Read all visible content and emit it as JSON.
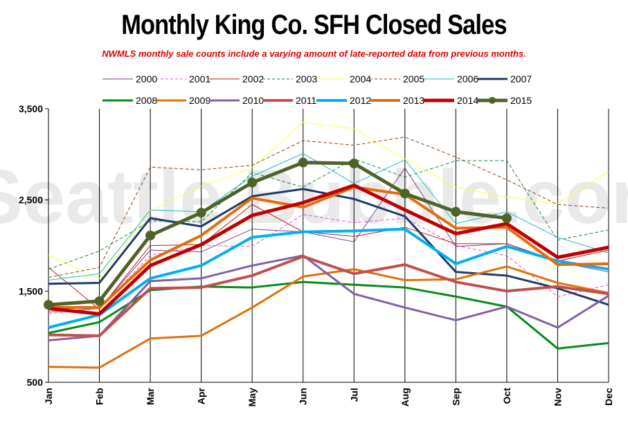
{
  "chart_data": {
    "type": "line",
    "title": "Monthly King Co. SFH Closed Sales",
    "subtitle": "NWMLS monthly sale counts include a varying amount of late-reported  data from previous months.",
    "watermark": "Seattle Bubble.com",
    "categories": [
      "Jan",
      "Feb",
      "Mar",
      "Apr",
      "May",
      "Jun",
      "Jul",
      "Aug",
      "Sep",
      "Oct",
      "Nov",
      "Dec"
    ],
    "ylim": [
      500,
      3500
    ],
    "yticks": [
      500,
      1500,
      2500,
      3500
    ],
    "ytick_labels": [
      "500",
      "1,500",
      "2,500",
      "3,500"
    ],
    "grid": "vertical",
    "legend_position": "top",
    "series": [
      {
        "name": "2000",
        "color": "#7a3c87",
        "dash": "solid",
        "width": 1,
        "values": [
          1270,
          1310,
          1950,
          1930,
          2180,
          2150,
          2040,
          2850,
          1990,
          2020,
          1820,
          1710
        ]
      },
      {
        "name": "2001",
        "color": "#ea4ce0",
        "dash": "dash",
        "width": 1,
        "values": [
          1250,
          1310,
          1890,
          2000,
          1990,
          2340,
          2250,
          2300,
          2000,
          1890,
          1440,
          1570
        ]
      },
      {
        "name": "2002",
        "color": "#c0181b",
        "dash": "solid",
        "width": 1,
        "values": [
          1760,
          1300,
          2000,
          2010,
          2450,
          2150,
          2100,
          2200,
          2020,
          2020,
          1830,
          1950
        ]
      },
      {
        "name": "2003",
        "color": "#0f8a3c",
        "dash": "dash",
        "width": 1,
        "values": [
          1740,
          1940,
          2270,
          2260,
          2800,
          2640,
          2950,
          2750,
          2930,
          2930,
          2060,
          2170
        ]
      },
      {
        "name": "2004",
        "color": "#ffff40",
        "dash": "solid",
        "width": 1,
        "values": [
          1890,
          1640,
          2380,
          2650,
          2850,
          3350,
          3280,
          2950,
          2640,
          2530,
          2460,
          2810
        ]
      },
      {
        "name": "2005",
        "color": "#8b4513",
        "dash": "dash",
        "width": 1,
        "values": [
          1650,
          1760,
          2860,
          2830,
          2880,
          3150,
          3100,
          3190,
          2970,
          2720,
          2450,
          2410
        ]
      },
      {
        "name": "2006",
        "color": "#1fb8d0",
        "dash": "solid",
        "width": 1,
        "values": [
          1620,
          1690,
          2390,
          2370,
          2760,
          3010,
          2680,
          2940,
          2240,
          2370,
          2090,
          1920
        ]
      },
      {
        "name": "2007",
        "color": "#1f3a68",
        "dash": "solid",
        "width": 3,
        "values": [
          1580,
          1590,
          2300,
          2210,
          2540,
          2620,
          2510,
          2320,
          1710,
          1670,
          1530,
          1350
        ]
      },
      {
        "name": "2008",
        "color": "#0a8a17",
        "dash": "solid",
        "width": 3,
        "values": [
          1040,
          1160,
          1510,
          1550,
          1540,
          1600,
          1570,
          1540,
          1440,
          1330,
          870,
          930
        ]
      },
      {
        "name": "2009",
        "color": "#e0700b",
        "dash": "solid",
        "width": 3,
        "values": [
          670,
          660,
          980,
          1010,
          1320,
          1660,
          1740,
          1620,
          1630,
          1770,
          1590,
          1480
        ]
      },
      {
        "name": "2010",
        "color": "#8060a8",
        "dash": "solid",
        "width": 3,
        "values": [
          960,
          1010,
          1610,
          1640,
          1780,
          1890,
          1470,
          1320,
          1180,
          1330,
          1100,
          1450
        ]
      },
      {
        "name": "2011",
        "color": "#c0504d",
        "dash": "solid",
        "width": 4,
        "values": [
          1020,
          1010,
          1530,
          1540,
          1670,
          1880,
          1690,
          1790,
          1600,
          1500,
          1550,
          1470
        ]
      },
      {
        "name": "2012",
        "color": "#00b0f0",
        "dash": "solid",
        "width": 4,
        "values": [
          1100,
          1240,
          1640,
          1780,
          2090,
          2150,
          2160,
          2180,
          1800,
          1990,
          1830,
          1740
        ]
      },
      {
        "name": "2013",
        "color": "#e46c0a",
        "dash": "solid",
        "width": 4,
        "values": [
          1320,
          1320,
          1840,
          2110,
          2520,
          2420,
          2640,
          2560,
          2190,
          2200,
          1790,
          1800
        ]
      },
      {
        "name": "2014",
        "color": "#c00000",
        "dash": "solid",
        "width": 5,
        "values": [
          1310,
          1250,
          1780,
          2010,
          2330,
          2470,
          2660,
          2390,
          2130,
          2240,
          1870,
          1980
        ]
      },
      {
        "name": "2015",
        "color": "#4f6228",
        "dash": "dot",
        "width": 5,
        "values": [
          1350,
          1390,
          2110,
          2360,
          2690,
          2910,
          2900,
          2570,
          2370,
          2300,
          null,
          null
        ]
      }
    ]
  }
}
